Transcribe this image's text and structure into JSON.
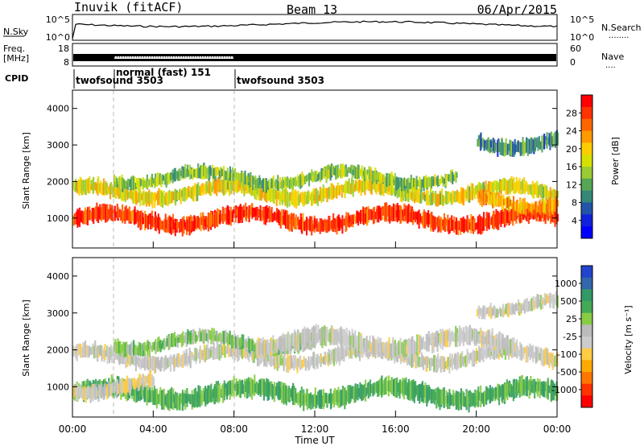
{
  "header": {
    "site": "Inuvik (fitACF)",
    "beam": "Beam 13",
    "date": "06/Apr/2015"
  },
  "strip_nsky": {
    "label": "N.Sky",
    "left_ticks": [
      "10^5",
      "10^0"
    ],
    "right_ticks": [
      "10^5",
      "10^0"
    ],
    "right_label": "N.Search",
    "right_legend": "........"
  },
  "strip_freq": {
    "label_line1": "Freq.",
    "label_line2": "[MHz]",
    "left_ticks": [
      "18",
      "8"
    ],
    "right_ticks": [
      "60",
      "0"
    ],
    "right_label": "Nave",
    "right_legend": "...."
  },
  "cpid": {
    "label": "CPID",
    "segments": [
      {
        "label": "twofsound 3503",
        "start_hour": 0
      },
      {
        "label": "normal (fast) 151",
        "start_hour": 2
      },
      {
        "label": "twofsound 3503",
        "start_hour": 8
      }
    ]
  },
  "panels": {
    "power": {
      "ylabel": "Slant Range [km]",
      "yticks": [
        "1000",
        "2000",
        "3000",
        "4000"
      ],
      "colorbar_label": "Power [dB]",
      "colorbar_ticks": [
        "28",
        "24",
        "20",
        "16",
        "12",
        "8",
        "4"
      ],
      "colorbar_colors": [
        "#ff0000",
        "#ff3300",
        "#ff6600",
        "#ff9900",
        "#ffcc00",
        "#d6e000",
        "#99cc33",
        "#55a655",
        "#338877",
        "#2255aa",
        "#1122dd",
        "#0000ff"
      ]
    },
    "velocity": {
      "ylabel": "Slant Range [km]",
      "yticks": [
        "1000",
        "2000",
        "3000",
        "4000"
      ],
      "colorbar_label": "Velocity [m s⁻¹]",
      "colorbar_ticks": [
        "1000",
        "500",
        "25",
        "-25",
        "-100",
        "-500",
        "-1000"
      ],
      "colorbar_colors": [
        "#2244cc",
        "#3366aa",
        "#339966",
        "#44aa55",
        "#88cc44",
        "#bbbbbb",
        "#cccccc",
        "#ffcc44",
        "#ffaa00",
        "#ff7700",
        "#ff3300",
        "#ff0000"
      ]
    }
  },
  "xaxis": {
    "label": "Time UT",
    "ticks": [
      "00:00",
      "04:00",
      "08:00",
      "12:00",
      "16:00",
      "20:00",
      "00:00"
    ]
  },
  "chart_data": {
    "type": "heatmap",
    "x_range_hours": [
      0,
      24
    ],
    "y_range_km": [
      180,
      4500
    ],
    "power_bands": [
      {
        "from_hour": 0,
        "to_hour": 24,
        "center_km": 950,
        "width_km": 450,
        "value_db": 28
      },
      {
        "from_hour": 0,
        "to_hour": 24,
        "center_km": 1700,
        "width_km": 400,
        "value_db": 18
      },
      {
        "from_hour": 2,
        "to_hour": 19,
        "center_km": 2100,
        "width_km": 350,
        "value_db": 14
      },
      {
        "from_hour": 20,
        "to_hour": 24,
        "center_km": 1450,
        "width_km": 400,
        "value_db": 22
      },
      {
        "from_hour": 20,
        "to_hour": 24,
        "center_km": 3100,
        "width_km": 400,
        "value_db": 10
      }
    ],
    "velocity_bands": [
      {
        "from_hour": 0,
        "to_hour": 24,
        "center_km": 800,
        "width_km": 500,
        "value_ms": 500
      },
      {
        "from_hour": 0,
        "to_hour": 24,
        "center_km": 1800,
        "width_km": 400,
        "value_ms": 0
      },
      {
        "from_hour": 2,
        "to_hour": 12,
        "center_km": 2200,
        "width_km": 350,
        "value_ms": 300
      },
      {
        "from_hour": 9,
        "to_hour": 22,
        "center_km": 2200,
        "width_km": 500,
        "value_ms": 10
      },
      {
        "from_hour": 0,
        "to_hour": 4,
        "center_km": 1000,
        "width_km": 400,
        "value_ms": -150
      },
      {
        "from_hour": 20,
        "to_hour": 24,
        "center_km": 3200,
        "width_km": 350,
        "value_ms": 5
      }
    ]
  }
}
